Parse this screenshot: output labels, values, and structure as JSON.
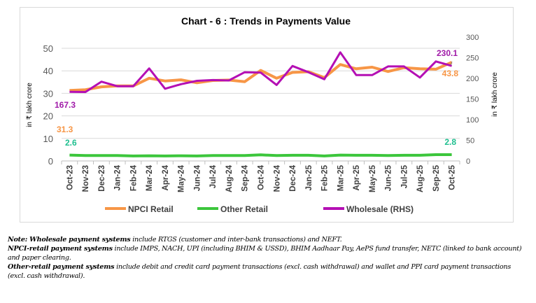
{
  "chart_data": {
    "type": "line",
    "title": "Chart - 6 : Trends in Payments Value",
    "ylabel_left": "in ₹ lakh crore",
    "ylabel_right": "in ₹ lakh crore",
    "ylim_left": [
      0,
      50
    ],
    "yticks_left": [
      0,
      10,
      20,
      30,
      40,
      50
    ],
    "ylim_right": [
      0,
      300
    ],
    "yticks_right": [
      0,
      50,
      100,
      150,
      200,
      250,
      300
    ],
    "grid": true,
    "legend": "bottom",
    "categories": [
      "Oct-23",
      "Nov-23",
      "Dec-23",
      "Jan-24",
      "Feb-24",
      "Mar-24",
      "Apr-24",
      "May-24",
      "Jun-24",
      "Jul-24",
      "Aug-24",
      "Sep-24",
      "Oct-24",
      "Nov-24",
      "Dec-24",
      "Jan-25",
      "Feb-25",
      "Mar-25",
      "Apr-25",
      "May-25",
      "Jun-25",
      "Jul-25",
      "Aug-25",
      "Sep-25",
      "Oct-25"
    ],
    "series": [
      {
        "name": "NPCI Retail",
        "axis": "left",
        "color": "#F79646",
        "values": [
          31.3,
          31.6,
          32.9,
          33.3,
          33.3,
          36.7,
          35.5,
          36.0,
          34.7,
          35.7,
          35.9,
          35.2,
          40.2,
          36.7,
          39.3,
          39.6,
          37.0,
          42.8,
          40.9,
          41.6,
          39.7,
          41.4,
          40.9,
          40.7,
          43.8
        ],
        "labels": {
          "first": "31.3",
          "last": "43.8"
        }
      },
      {
        "name": "Other Retail",
        "axis": "left",
        "color": "#3CC63C",
        "values": [
          2.6,
          2.4,
          2.4,
          2.4,
          2.2,
          2.3,
          2.2,
          2.3,
          2.2,
          2.4,
          2.4,
          2.4,
          2.7,
          2.4,
          2.5,
          2.5,
          2.2,
          2.6,
          2.5,
          2.5,
          2.4,
          2.5,
          2.5,
          2.8,
          2.8
        ],
        "labels": {
          "first": "2.6",
          "last": "2.8"
        }
      },
      {
        "name": "Wholesale (RHS)",
        "axis": "right",
        "color": "#B40FB4",
        "values": [
          167.3,
          167,
          192,
          181,
          181,
          224,
          175,
          186,
          194,
          196,
          195,
          215,
          214,
          184,
          230,
          215,
          198,
          263,
          208,
          208,
          229,
          229,
          202,
          241,
          230.1
        ],
        "labels": {
          "first": "167.3",
          "last": "230.1"
        }
      }
    ],
    "label_colors": {
      "NPCI Retail": "#F79646",
      "Other Retail": "#1FBF8F",
      "Wholesale (RHS)": "#A01AA8"
    }
  },
  "notes": [
    {
      "bold": "Note: Wholesale payment systems",
      "text": " include RTGS (customer and inter-bank transactions) and NEFT."
    },
    {
      "bold": "NPCI-retail payment systems",
      "text": " include IMPS, NACH, UPI (including BHIM & USSD), BHIM Aadhaar Pay, AePS fund transfer, NETC (linked to bank account) and paper clearing."
    },
    {
      "bold": "Other-retail payment systems",
      "text": " include debit and credit card payment transactions (excl. cash withdrawal) and wallet and PPI card payment transactions (excl. cash withdrawal)."
    }
  ]
}
